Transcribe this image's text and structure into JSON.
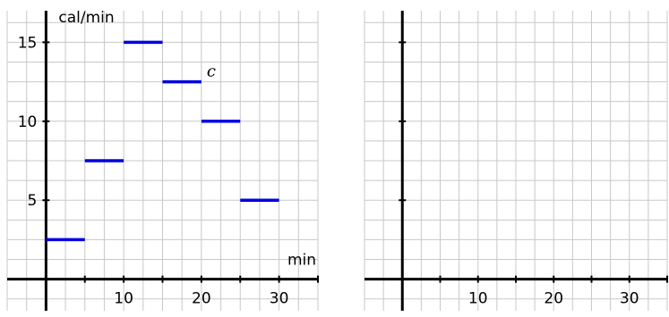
{
  "chart_data": [
    {
      "type": "line",
      "chart_style": "step",
      "ylabel": "cal/min",
      "xlabel": "min",
      "xlim": [
        -5,
        35
      ],
      "ylim": [
        -2,
        17
      ],
      "x_ticks": [
        10,
        20,
        30
      ],
      "y_ticks": [
        5,
        10,
        15
      ],
      "minor_tick_step": 5,
      "grid": true,
      "grid_step": [
        2.5,
        1.25
      ],
      "series": [
        {
          "name": "c",
          "color": "#0000e0",
          "segments": [
            {
              "x": [
                0,
                5
              ],
              "y": 2.5
            },
            {
              "x": [
                5,
                10
              ],
              "y": 7.5
            },
            {
              "x": [
                10,
                15
              ],
              "y": 15
            },
            {
              "x": [
                15,
                20
              ],
              "y": 12.5
            },
            {
              "x": [
                20,
                25
              ],
              "y": 10
            },
            {
              "x": [
                25,
                30
              ],
              "y": 5
            }
          ]
        }
      ]
    },
    {
      "type": "line",
      "ylabel": "",
      "xlabel": "",
      "xlim": [
        -5,
        35
      ],
      "ylim": [
        -2,
        17
      ],
      "x_ticks": [
        10,
        20,
        30
      ],
      "y_ticks": [],
      "y_tick_marks": [
        5,
        10,
        15
      ],
      "minor_tick_step": 5,
      "grid": true,
      "grid_step": [
        2.5,
        1.25
      ],
      "series": []
    }
  ]
}
